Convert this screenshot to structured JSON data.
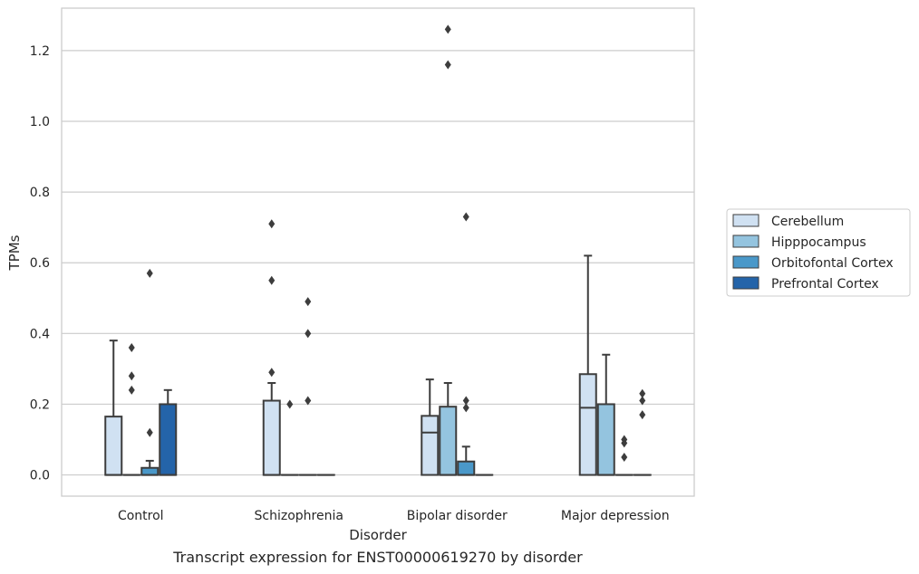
{
  "caption": "Transcript expression for ENST00000619270 by disorder",
  "chart_data": {
    "type": "box",
    "xlabel": "Disorder",
    "ylabel": "TPMs",
    "ylim": [
      -0.06,
      1.32
    ],
    "yticks": [
      0.0,
      0.2,
      0.4,
      0.6,
      0.8,
      1.0,
      1.2
    ],
    "ytick_labels": [
      "0.0",
      "0.2",
      "0.4",
      "0.6",
      "0.8",
      "1.0",
      "1.2"
    ],
    "categories": [
      "Control",
      "Schizophrenia",
      "Bipolar disorder",
      "Major depression"
    ],
    "grid": "horizontal",
    "legend_position": "right",
    "series": [
      {
        "name": "Cerebellum",
        "color": "#d0e1f2",
        "boxes": [
          {
            "whislo": 0.0,
            "q1": 0.0,
            "med": 0.0,
            "q3": 0.165,
            "whishi": 0.38,
            "fliers": []
          },
          {
            "whislo": 0.0,
            "q1": 0.0,
            "med": 0.0,
            "q3": 0.21,
            "whishi": 0.26,
            "fliers": [
              0.71,
              0.55,
              0.29
            ]
          },
          {
            "whislo": 0.0,
            "q1": 0.0,
            "med": 0.12,
            "q3": 0.167,
            "whishi": 0.27,
            "fliers": []
          },
          {
            "whislo": 0.0,
            "q1": 0.0,
            "med": 0.19,
            "q3": 0.285,
            "whishi": 0.62,
            "fliers": []
          }
        ]
      },
      {
        "name": "Hipppocampus",
        "color": "#94c4df",
        "boxes": [
          {
            "whislo": 0.0,
            "q1": 0.0,
            "med": 0.0,
            "q3": 0.0,
            "whishi": 0.0,
            "fliers": [
              0.36,
              0.28,
              0.24
            ]
          },
          {
            "whislo": 0.0,
            "q1": 0.0,
            "med": 0.0,
            "q3": 0.0,
            "whishi": 0.0,
            "fliers": [
              0.2
            ]
          },
          {
            "whislo": 0.0,
            "q1": 0.0,
            "med": 0.0,
            "q3": 0.193,
            "whishi": 0.26,
            "fliers": [
              1.26,
              1.16
            ]
          },
          {
            "whislo": 0.0,
            "q1": 0.0,
            "med": 0.0,
            "q3": 0.2,
            "whishi": 0.34,
            "fliers": []
          }
        ]
      },
      {
        "name": "Orbitofontal Cortex",
        "color": "#4a98c9",
        "boxes": [
          {
            "whislo": 0.0,
            "q1": 0.0,
            "med": 0.0,
            "q3": 0.02,
            "whishi": 0.04,
            "fliers": [
              0.57,
              0.12
            ]
          },
          {
            "whislo": 0.0,
            "q1": 0.0,
            "med": 0.0,
            "q3": 0.0,
            "whishi": 0.0,
            "fliers": [
              0.49,
              0.4,
              0.21
            ]
          },
          {
            "whislo": 0.0,
            "q1": 0.0,
            "med": 0.0,
            "q3": 0.038,
            "whishi": 0.08,
            "fliers": [
              0.73,
              0.21,
              0.19
            ]
          },
          {
            "whislo": 0.0,
            "q1": 0.0,
            "med": 0.0,
            "q3": 0.0,
            "whishi": 0.0,
            "fliers": [
              0.1,
              0.09,
              0.05
            ]
          }
        ]
      },
      {
        "name": "Prefrontal Cortex",
        "color": "#2464a9",
        "boxes": [
          {
            "whislo": 0.0,
            "q1": 0.0,
            "med": 0.0,
            "q3": 0.2,
            "whishi": 0.24,
            "fliers": []
          },
          {
            "whislo": 0.0,
            "q1": 0.0,
            "med": 0.0,
            "q3": 0.0,
            "whishi": 0.0,
            "fliers": []
          },
          {
            "whislo": 0.0,
            "q1": 0.0,
            "med": 0.0,
            "q3": 0.0,
            "whishi": 0.0,
            "fliers": []
          },
          {
            "whislo": 0.0,
            "q1": 0.0,
            "med": 0.0,
            "q3": 0.0,
            "whishi": 0.0,
            "fliers": [
              0.23,
              0.21,
              0.17
            ]
          }
        ]
      }
    ]
  }
}
